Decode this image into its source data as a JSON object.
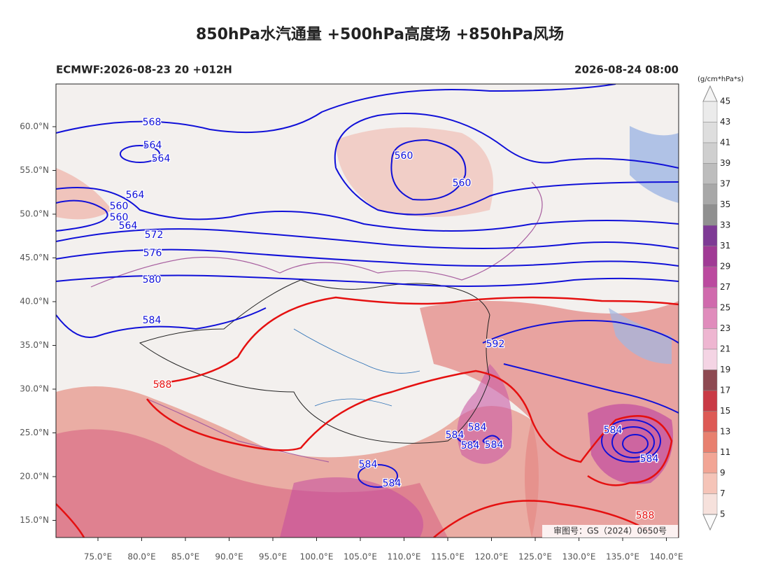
{
  "header": {
    "title": "850hPa水汽通量 +500hPa高度场 +850hPa风场",
    "left": "ECMWF:2026-08-23 20 +012H",
    "right": "2026-08-24 08:00"
  },
  "axes": {
    "lat_labels": [
      "60.0°N",
      "55.0°N",
      "50.0°N",
      "45.0°N",
      "40.0°N",
      "35.0°N",
      "30.0°N",
      "25.0°N",
      "20.0°N",
      "15.0°N"
    ],
    "lon_labels": [
      "75.0°E",
      "80.0°E",
      "85.0°E",
      "90.0°E",
      "95.0°E",
      "100.0°E",
      "105.0°E",
      "110.0°E",
      "115.0°E",
      "120.0°E",
      "125.0°E",
      "130.0°E",
      "135.0°E",
      "140.0°E"
    ]
  },
  "colorbar": {
    "unit": "(g/cm*hPa*s)",
    "ticks": [
      45,
      43,
      41,
      39,
      37,
      35,
      33,
      31,
      29,
      27,
      25,
      23,
      21,
      19,
      17,
      15,
      13,
      11,
      9,
      7,
      5
    ],
    "colors": [
      "#ebebeb",
      "#dedede",
      "#cfcfcf",
      "#bdbdbd",
      "#a8a8a8",
      "#909090",
      "#7e3a95",
      "#a03a95",
      "#bb4a9f",
      "#d06aad",
      "#e08cbc",
      "#eeb6d1",
      "#f4d4e4",
      "#8e4a52",
      "#c93a45",
      "#dd5a55",
      "#e8806f",
      "#f2a595",
      "#f5c4b8",
      "#f6e1dc"
    ]
  },
  "contour_labels": [
    568,
    564,
    564,
    560,
    560,
    564,
    560,
    560,
    564,
    572,
    576,
    580,
    584,
    592,
    588,
    584,
    584,
    584,
    584,
    584,
    584,
    584,
    584,
    588
  ],
  "footer": {
    "approval": "审图号：GS（2024）0650号"
  }
}
